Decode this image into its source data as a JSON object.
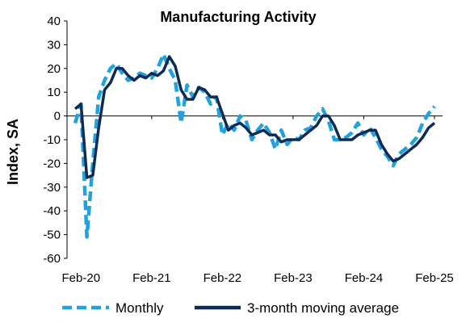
{
  "chart_data": {
    "type": "line",
    "title": "Manufacturing Activity",
    "xlabel": "",
    "ylabel": "Index, SA",
    "ylim": [
      -60,
      40
    ],
    "yticks": [
      40,
      30,
      20,
      10,
      0,
      -10,
      -20,
      -30,
      -40,
      -50,
      -60
    ],
    "xticks": [
      "Feb-20",
      "Feb-21",
      "Feb-22",
      "Feb-23",
      "Feb-24",
      "Feb-25"
    ],
    "x": [
      "2020-01",
      "2020-02",
      "2020-03",
      "2020-04",
      "2020-05",
      "2020-06",
      "2020-07",
      "2020-08",
      "2020-09",
      "2020-10",
      "2020-11",
      "2020-12",
      "2021-01",
      "2021-02",
      "2021-03",
      "2021-04",
      "2021-05",
      "2021-06",
      "2021-07",
      "2021-08",
      "2021-09",
      "2021-10",
      "2021-11",
      "2021-12",
      "2022-01",
      "2022-02",
      "2022-03",
      "2022-04",
      "2022-05",
      "2022-06",
      "2022-07",
      "2022-08",
      "2022-09",
      "2022-10",
      "2022-11",
      "2022-12",
      "2023-01",
      "2023-02",
      "2023-03",
      "2023-04",
      "2023-05",
      "2023-06",
      "2023-07",
      "2023-08",
      "2023-09",
      "2023-10",
      "2023-11",
      "2023-12",
      "2024-01",
      "2024-02",
      "2024-03",
      "2024-04",
      "2024-05",
      "2024-06",
      "2024-07",
      "2024-08",
      "2024-09",
      "2024-10",
      "2024-11",
      "2024-12",
      "2025-01",
      "2025-02"
    ],
    "series": [
      {
        "name": "Monthly",
        "style": "dashed",
        "color": "#1FA2DD",
        "values": [
          -3,
          5,
          -51,
          -20,
          8,
          15,
          20,
          22,
          18,
          15,
          16,
          18,
          17,
          16,
          20,
          26,
          20,
          15,
          -3,
          13,
          8,
          12,
          10,
          5,
          8,
          -8,
          -3,
          -6,
          0,
          -2,
          -10,
          -6,
          -3,
          -7,
          -14,
          -6,
          -12,
          -9,
          -10,
          -6,
          -5,
          0,
          3,
          -2,
          -10,
          -10,
          -9,
          -7,
          -3,
          -8,
          -5,
          -9,
          -14,
          -17,
          -21,
          -16,
          -14,
          -12,
          -9,
          -3,
          1,
          4
        ]
      },
      {
        "name": "3-month moving average",
        "style": "solid",
        "color": "#0D2B55",
        "values": [
          3,
          5,
          -26,
          -25,
          -5,
          11,
          14,
          20,
          20,
          17,
          15,
          17,
          16,
          18,
          17,
          19,
          25,
          21,
          11,
          7,
          7,
          12,
          11,
          8,
          8,
          1,
          -6,
          -4,
          -3,
          -5,
          -8,
          -7,
          -6,
          -8,
          -8,
          -11,
          -10,
          -10,
          -10,
          -8,
          -6,
          -4,
          0,
          0,
          -4,
          -10,
          -10,
          -10,
          -8,
          -7,
          -6,
          -6,
          -12,
          -16,
          -19,
          -18,
          -16,
          -14,
          -12,
          -9,
          -5,
          -3
        ]
      }
    ],
    "legend": {
      "position": "bottom"
    },
    "grid": false
  }
}
